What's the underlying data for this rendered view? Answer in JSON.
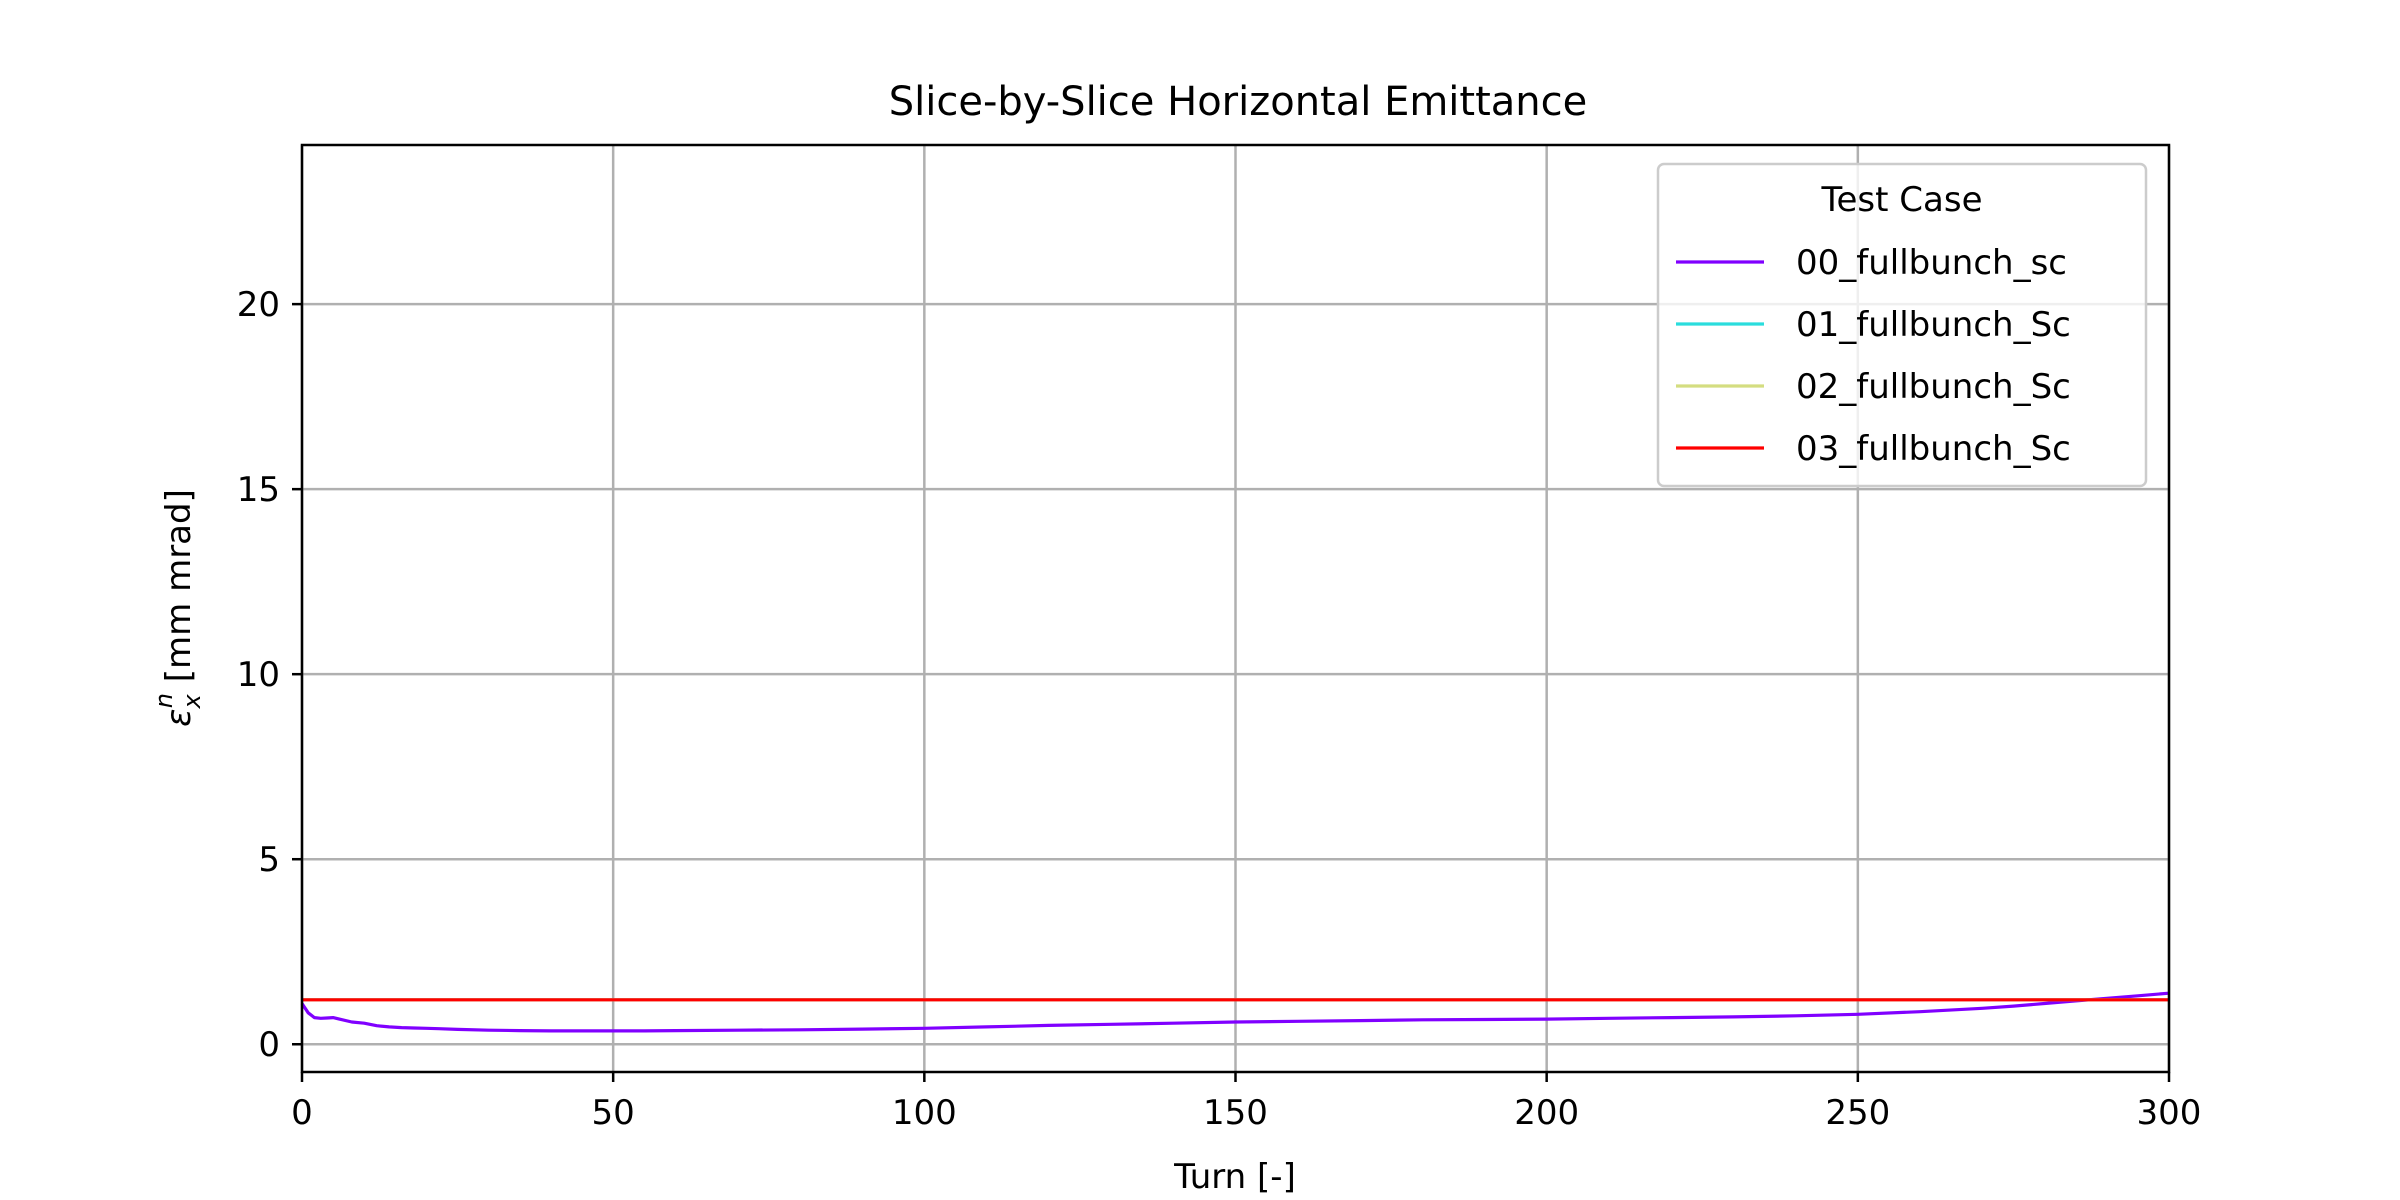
{
  "chart_data": {
    "type": "line",
    "title": "Slice-by-Slice Horizontal Emittance",
    "xlabel": "Turn [-]",
    "ylabel_main": "ε",
    "ylabel_sub": "x",
    "ylabel_sup": "n",
    "ylabel_rest": " [mm mrad]",
    "xlim": [
      0,
      300
    ],
    "ylim": [
      -0.75,
      24.3
    ],
    "xticks": [
      0,
      50,
      100,
      150,
      200,
      250,
      300
    ],
    "yticks": [
      0,
      5,
      10,
      15,
      20
    ],
    "grid": true,
    "legend": {
      "title": "Test Case",
      "placement": "top-right"
    },
    "series": [
      {
        "name": "00_fullbunch_sc",
        "color": "#8000ff",
        "x": [
          0,
          1,
          2,
          3,
          4,
          5,
          6,
          8,
          10,
          12,
          14,
          16,
          18,
          20,
          22,
          25,
          30,
          35,
          40,
          45,
          50,
          55,
          60,
          70,
          80,
          90,
          100,
          110,
          120,
          130,
          140,
          150,
          160,
          170,
          180,
          190,
          200,
          210,
          220,
          230,
          240,
          250,
          260,
          270,
          275,
          280,
          285,
          290,
          295,
          300
        ],
        "y": [
          1.1,
          0.85,
          0.72,
          0.7,
          0.71,
          0.72,
          0.68,
          0.6,
          0.57,
          0.5,
          0.47,
          0.45,
          0.44,
          0.43,
          0.42,
          0.4,
          0.38,
          0.37,
          0.36,
          0.36,
          0.36,
          0.36,
          0.37,
          0.38,
          0.39,
          0.41,
          0.43,
          0.47,
          0.51,
          0.54,
          0.57,
          0.6,
          0.62,
          0.64,
          0.66,
          0.67,
          0.68,
          0.7,
          0.72,
          0.74,
          0.77,
          0.81,
          0.88,
          0.97,
          1.03,
          1.1,
          1.17,
          1.24,
          1.31,
          1.38
        ]
      },
      {
        "name": "01_fullbunch_Sc",
        "color": "#2adddd",
        "x": [
          0,
          300
        ],
        "y": [
          1.2,
          1.2
        ]
      },
      {
        "name": "02_fullbunch_Sc",
        "color": "#d4dd80",
        "x": [
          0,
          300
        ],
        "y": [
          1.2,
          1.2
        ]
      },
      {
        "name": "03_fullbunch_Sc",
        "color": "#ff0000",
        "x": [
          0,
          300
        ],
        "y": [
          1.2,
          1.2
        ]
      }
    ]
  }
}
